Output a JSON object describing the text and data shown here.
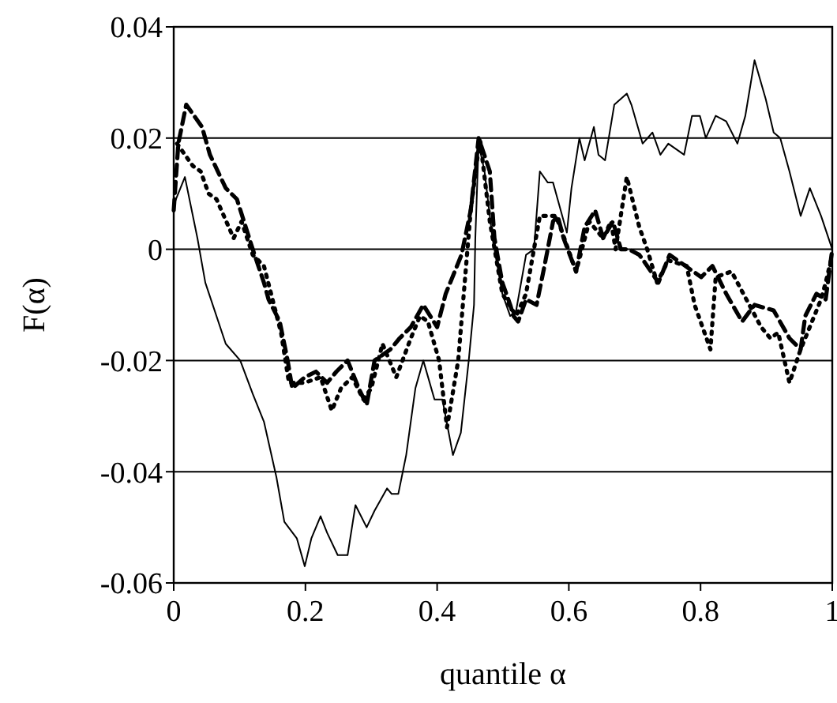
{
  "chart_data": {
    "type": "line",
    "xlabel": "quantile α",
    "ylabel": "F(α)",
    "xlim": [
      0,
      1
    ],
    "ylim": [
      -0.06,
      0.04
    ],
    "xticks": [
      0,
      0.2,
      0.4,
      0.6,
      0.8,
      1
    ],
    "yticks": [
      -0.06,
      -0.04,
      -0.02,
      0,
      0.02,
      0.04
    ],
    "grid": "y",
    "marker": "none",
    "series": [
      {
        "color": "#000000",
        "line_style": "solid",
        "x": [
          0,
          0.017,
          0.036,
          0.048,
          0.079,
          0.101,
          0.12,
          0.137,
          0.156,
          0.168,
          0.187,
          0.199,
          0.209,
          0.223,
          0.233,
          0.249,
          0.264,
          0.276,
          0.293,
          0.305,
          0.324,
          0.331,
          0.341,
          0.353,
          0.367,
          0.379,
          0.396,
          0.408,
          0.424,
          0.436,
          0.448,
          0.456,
          0.458,
          0.463,
          0.472,
          0.484,
          0.499,
          0.511,
          0.52,
          0.535,
          0.547,
          0.556,
          0.568,
          0.576,
          0.583,
          0.597,
          0.604,
          0.616,
          0.624,
          0.638,
          0.645,
          0.655,
          0.669,
          0.688,
          0.695,
          0.712,
          0.727,
          0.739,
          0.751,
          0.775,
          0.787,
          0.799,
          0.808,
          0.823,
          0.839,
          0.856,
          0.868,
          0.882,
          0.899,
          0.911,
          0.921,
          0.935,
          0.952,
          0.966,
          0.983,
          1
        ],
        "values": [
          0.008,
          0.013,
          0.002,
          -0.006,
          -0.017,
          -0.02,
          -0.026,
          -0.031,
          -0.041,
          -0.049,
          -0.052,
          -0.057,
          -0.052,
          -0.048,
          -0.051,
          -0.055,
          -0.055,
          -0.046,
          -0.05,
          -0.047,
          -0.043,
          -0.044,
          -0.044,
          -0.037,
          -0.025,
          -0.02,
          -0.027,
          -0.027,
          -0.037,
          -0.033,
          -0.02,
          -0.01,
          0.002,
          0.019,
          0.014,
          0.002,
          -0.008,
          -0.012,
          -0.011,
          -0.001,
          0,
          0.014,
          0.012,
          0.012,
          0.009,
          0.003,
          0.011,
          0.02,
          0.016,
          0.022,
          0.017,
          0.016,
          0.026,
          0.028,
          0.026,
          0.019,
          0.021,
          0.017,
          0.019,
          0.017,
          0.024,
          0.024,
          0.02,
          0.024,
          0.023,
          0.019,
          0.024,
          0.034,
          0.027,
          0.021,
          0.02,
          0.014,
          0.006,
          0.011,
          0.006,
          0
        ]
      },
      {
        "color": "#000000",
        "line_style": "dashed",
        "x": [
          0,
          0.007,
          0.019,
          0.043,
          0.055,
          0.079,
          0.096,
          0.12,
          0.137,
          0.144,
          0.161,
          0.173,
          0.18,
          0.199,
          0.216,
          0.233,
          0.247,
          0.264,
          0.281,
          0.293,
          0.305,
          0.329,
          0.343,
          0.36,
          0.379,
          0.4,
          0.413,
          0.437,
          0.451,
          0.463,
          0.48,
          0.487,
          0.499,
          0.511,
          0.516,
          0.523,
          0.535,
          0.551,
          0.563,
          0.576,
          0.583,
          0.592,
          0.611,
          0.624,
          0.64,
          0.652,
          0.667,
          0.679,
          0.691,
          0.707,
          0.719,
          0.736,
          0.753,
          0.777,
          0.801,
          0.818,
          0.839,
          0.863,
          0.882,
          0.911,
          0.935,
          0.952,
          0.959,
          0.976,
          0.99,
          1
        ],
        "values": [
          0.007,
          0.019,
          0.026,
          0.022,
          0.017,
          0.011,
          0.009,
          0,
          -0.006,
          -0.009,
          -0.013,
          -0.02,
          -0.025,
          -0.023,
          -0.022,
          -0.024,
          -0.022,
          -0.02,
          -0.025,
          -0.028,
          -0.02,
          -0.018,
          -0.016,
          -0.014,
          -0.01,
          -0.014,
          -0.008,
          -0.001,
          0.007,
          0.02,
          0.014,
          0.002,
          -0.006,
          -0.01,
          -0.012,
          -0.013,
          -0.009,
          -0.01,
          -0.003,
          0.005,
          0.006,
          0.002,
          -0.004,
          0.004,
          0.007,
          0.002,
          0.005,
          0,
          0,
          -0.001,
          -0.003,
          -0.006,
          -0.001,
          -0.003,
          -0.005,
          -0.003,
          -0.008,
          -0.013,
          -0.01,
          -0.011,
          -0.016,
          -0.018,
          -0.012,
          -0.008,
          -0.009,
          0
        ]
      },
      {
        "color": "#000000",
        "line_style": "dotted",
        "x": [
          0.005,
          0.029,
          0.041,
          0.053,
          0.065,
          0.091,
          0.103,
          0.12,
          0.137,
          0.163,
          0.175,
          0.199,
          0.223,
          0.24,
          0.254,
          0.271,
          0.288,
          0.3,
          0.317,
          0.338,
          0.36,
          0.374,
          0.386,
          0.403,
          0.415,
          0.432,
          0.451,
          0.465,
          0.48,
          0.499,
          0.52,
          0.535,
          0.556,
          0.58,
          0.587,
          0.611,
          0.631,
          0.652,
          0.664,
          0.671,
          0.688,
          0.707,
          0.719,
          0.734,
          0.751,
          0.779,
          0.791,
          0.815,
          0.823,
          0.847,
          0.892,
          0.906,
          0.918,
          0.935,
          0.952,
          0.983,
          0.99,
          1
        ],
        "values": [
          0.019,
          0.015,
          0.014,
          0.01,
          0.009,
          0.002,
          0.005,
          -0.001,
          -0.003,
          -0.015,
          -0.024,
          -0.024,
          -0.023,
          -0.029,
          -0.025,
          -0.023,
          -0.027,
          -0.025,
          -0.017,
          -0.023,
          -0.016,
          -0.012,
          -0.013,
          -0.02,
          -0.032,
          -0.02,
          0.007,
          0.02,
          0.005,
          -0.008,
          -0.012,
          -0.008,
          0.006,
          0.006,
          0.004,
          -0.004,
          0.005,
          0.002,
          0.005,
          0,
          0.013,
          0.004,
          0,
          -0.006,
          -0.002,
          -0.003,
          -0.01,
          -0.018,
          -0.005,
          -0.004,
          -0.014,
          -0.016,
          -0.015,
          -0.024,
          -0.018,
          -0.009,
          -0.006,
          -0.001
        ]
      }
    ]
  }
}
